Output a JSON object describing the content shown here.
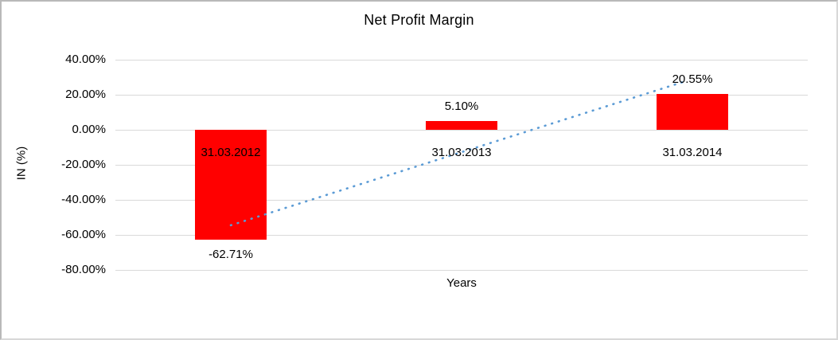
{
  "window": {
    "background": "#ffffff",
    "border_color": "#b9b9b9"
  },
  "chart_data": {
    "type": "bar",
    "title": "Net Profit Margin",
    "xlabel": "Years",
    "ylabel": "IN (%)",
    "categories": [
      "31.03.2012",
      "31.03.2013",
      "31.03.2014"
    ],
    "values": [
      -62.71,
      5.1,
      20.55
    ],
    "data_labels": [
      "-62.71%",
      "5.10%",
      "20.55%"
    ],
    "bar_color": "#ff0000",
    "ylim": [
      -80,
      40
    ],
    "ytick_step": 20,
    "ytick_labels": [
      "40.00%",
      "20.00%",
      "0.00%",
      "-20.00%",
      "-40.00%",
      "-60.00%",
      "-80.00%"
    ],
    "grid": true,
    "gridline_color": "#d9d9d9",
    "legend": "none",
    "trendline": {
      "style": "dotted",
      "color": "#5b9bd5",
      "start": {
        "cat_index": 0,
        "value": -54.5
      },
      "end": {
        "cat_index": 1.96,
        "value": 27.3
      }
    }
  }
}
